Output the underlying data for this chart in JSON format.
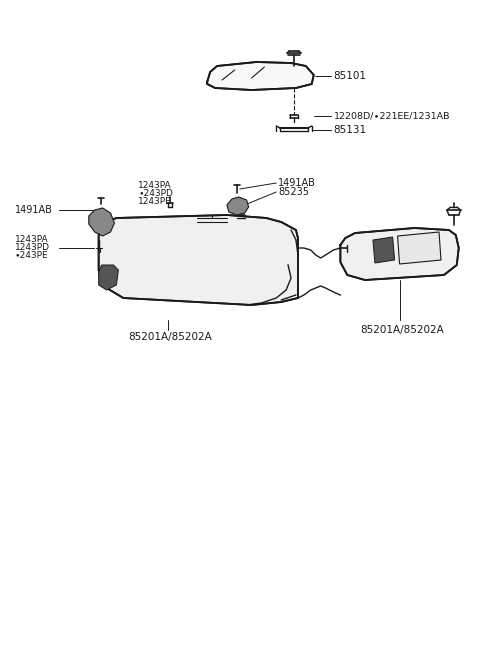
{
  "bg_color": "#ffffff",
  "line_color": "#1a1a1a",
  "text_color": "#1a1a1a",
  "fig_width": 4.8,
  "fig_height": 6.57,
  "dpi": 100,
  "mirror_label": "85101",
  "bolt_label": "12208D/∙221EE/1231AB",
  "bracket_label": "85131",
  "label_1491AB": "1491AB",
  "label_85235": "85235",
  "label_1243PA_a": "1243PA",
  "label_243PD_a": "∙243PD",
  "label_1243PE_a": "1243PE",
  "label_1243PA_b": "1243PA",
  "label_1243PD_b": "1243PD",
  "label_243PE_b": "∙243PE",
  "visor_left_label": "85201A/85202A",
  "visor_right_label": "85201A/85202A"
}
